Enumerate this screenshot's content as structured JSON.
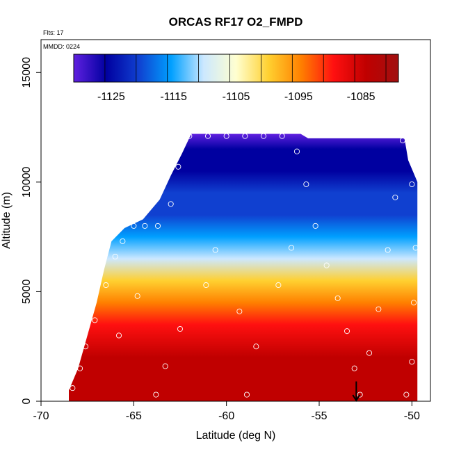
{
  "chart_data": {
    "type": "heatmap",
    "title": "ORCAS RF17 O2_FMPD",
    "annotations": {
      "flights": "Flts: 17",
      "date": "MMDD: 0224"
    },
    "xlabel": "Latitude (deg N)",
    "ylabel": "Altitude (m)",
    "xlim": [
      -70,
      -49
    ],
    "ylim": [
      0,
      16500
    ],
    "xticks": [
      -70,
      -65,
      -60,
      -55,
      -50
    ],
    "yticks": [
      0,
      5000,
      10000,
      15000
    ],
    "colorbar": {
      "range": [
        -1131,
        -1079
      ],
      "ticks": [
        -1125,
        -1115,
        -1105,
        -1095,
        -1085
      ],
      "tick_labels": [
        "-1125",
        "-1115",
        "-1105",
        "-1095",
        "-1085"
      ],
      "levels": [
        -1131,
        -1126,
        -1121,
        -1116,
        -1111,
        -1106,
        -1101,
        -1096,
        -1091,
        -1086,
        -1081,
        -1079
      ],
      "palette": [
        "#6020e0",
        "#0000a0",
        "#1040d0",
        "#00a0ff",
        "#cce8ff",
        "#ffffd0",
        "#ffd030",
        "#ff8000",
        "#ff1010",
        "#c00000",
        "#a01010"
      ]
    },
    "field_profile": {
      "altitude_m": [
        0,
        2000,
        3500,
        4500,
        5500,
        6500,
        7500,
        8500,
        9500,
        10500,
        11500,
        12200
      ],
      "value": [
        -1083,
        -1086,
        -1090,
        -1096,
        -1102,
        -1108,
        -1114,
        -1119,
        -1123,
        -1126,
        -1128,
        -1129
      ]
    },
    "data_extent": {
      "latitude": [
        -68.5,
        -49.7
      ],
      "altitude_m": [
        0,
        12200
      ]
    },
    "sample_points": [
      {
        "lat": -68.3,
        "alt": 600
      },
      {
        "lat": -67.9,
        "alt": 1500
      },
      {
        "lat": -67.6,
        "alt": 2500
      },
      {
        "lat": -67.1,
        "alt": 3700
      },
      {
        "lat": -66.5,
        "alt": 5300
      },
      {
        "lat": -66.0,
        "alt": 6600
      },
      {
        "lat": -65.6,
        "alt": 7300
      },
      {
        "lat": -65.0,
        "alt": 8000
      },
      {
        "lat": -64.4,
        "alt": 8000
      },
      {
        "lat": -63.7,
        "alt": 8000
      },
      {
        "lat": -63.0,
        "alt": 9000
      },
      {
        "lat": -62.6,
        "alt": 10700
      },
      {
        "lat": -62.0,
        "alt": 12100
      },
      {
        "lat": -61.0,
        "alt": 12100
      },
      {
        "lat": -60.0,
        "alt": 12100
      },
      {
        "lat": -59.0,
        "alt": 12100
      },
      {
        "lat": -58.0,
        "alt": 12100
      },
      {
        "lat": -57.0,
        "alt": 12100
      },
      {
        "lat": -56.2,
        "alt": 11400
      },
      {
        "lat": -55.7,
        "alt": 9900
      },
      {
        "lat": -55.2,
        "alt": 8000
      },
      {
        "lat": -54.6,
        "alt": 6200
      },
      {
        "lat": -54.0,
        "alt": 4700
      },
      {
        "lat": -53.5,
        "alt": 3200
      },
      {
        "lat": -53.1,
        "alt": 1500
      },
      {
        "lat": -52.8,
        "alt": 300
      },
      {
        "lat": -52.3,
        "alt": 2200
      },
      {
        "lat": -51.8,
        "alt": 4200
      },
      {
        "lat": -51.3,
        "alt": 6900
      },
      {
        "lat": -50.9,
        "alt": 9300
      },
      {
        "lat": -50.5,
        "alt": 11900
      },
      {
        "lat": -50.0,
        "alt": 9900
      },
      {
        "lat": -49.8,
        "alt": 7000
      },
      {
        "lat": -49.9,
        "alt": 4500
      },
      {
        "lat": -50.0,
        "alt": 1800
      },
      {
        "lat": -50.3,
        "alt": 300
      },
      {
        "lat": -60.6,
        "alt": 6900
      },
      {
        "lat": -61.1,
        "alt": 5300
      },
      {
        "lat": -62.5,
        "alt": 3300
      },
      {
        "lat": -63.3,
        "alt": 1600
      },
      {
        "lat": -63.8,
        "alt": 300
      },
      {
        "lat": -58.4,
        "alt": 2500
      },
      {
        "lat": -57.2,
        "alt": 5300
      },
      {
        "lat": -56.5,
        "alt": 7000
      },
      {
        "lat": -58.9,
        "alt": 300
      },
      {
        "lat": -59.3,
        "alt": 4100
      },
      {
        "lat": -64.8,
        "alt": 4800
      },
      {
        "lat": -65.8,
        "alt": 3000
      }
    ],
    "marker": {
      "type": "arrow-down",
      "lat": -53.0,
      "alt": 650
    }
  }
}
